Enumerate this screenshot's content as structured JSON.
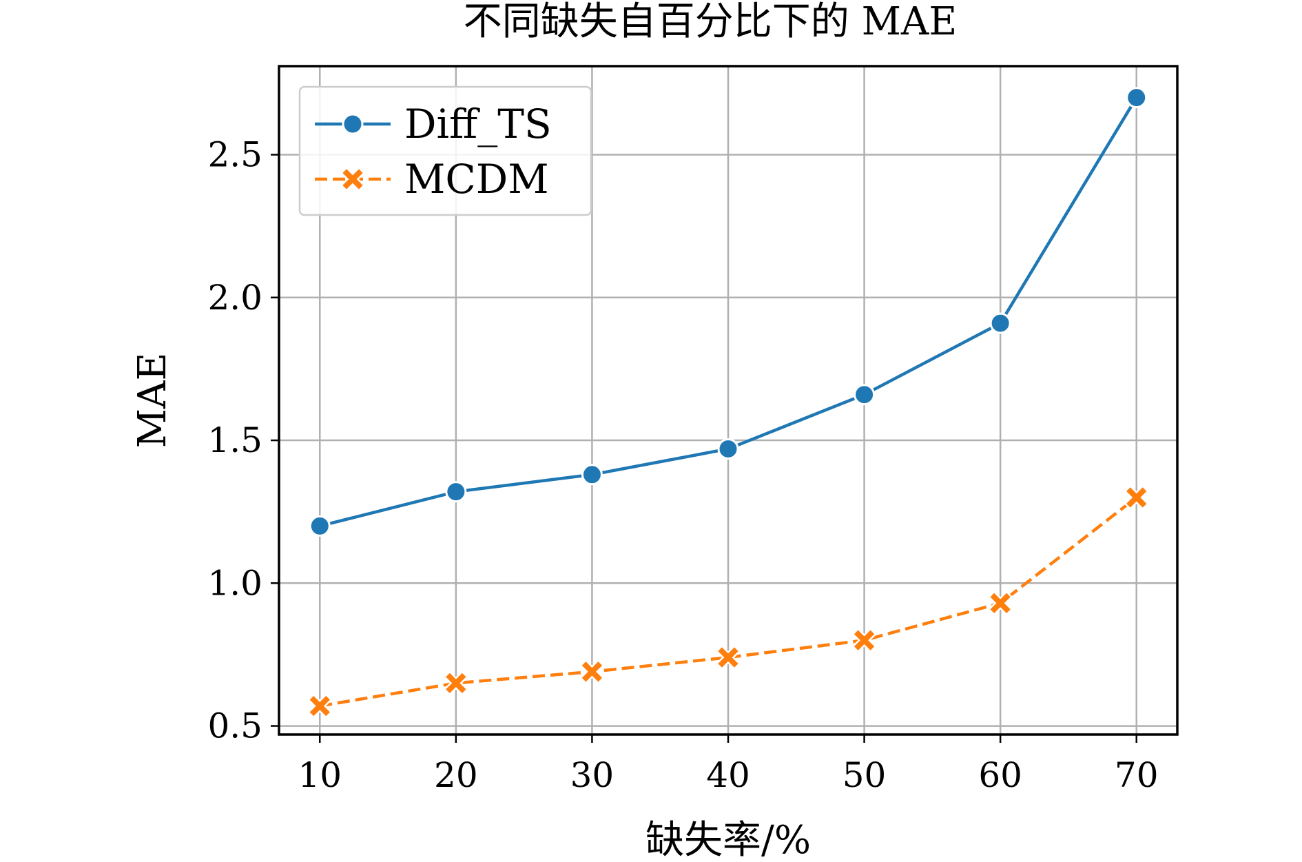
{
  "chart_data": {
    "type": "line",
    "title": "不同缺失自百分比下的 MAE",
    "xlabel": "缺失率/%",
    "ylabel": "MAE",
    "x": [
      10,
      20,
      30,
      40,
      50,
      60,
      70
    ],
    "xticks": [
      "10",
      "20",
      "30",
      "40",
      "50",
      "60",
      "70"
    ],
    "yticks": [
      "0.5",
      "1.0",
      "1.5",
      "2.0",
      "2.5"
    ],
    "xlim": [
      7,
      73
    ],
    "ylim": [
      0.47,
      2.81
    ],
    "grid": true,
    "legend_position": "top-left",
    "series": [
      {
        "name": "Diff_TS",
        "values": [
          1.2,
          1.32,
          1.38,
          1.47,
          1.66,
          1.91,
          2.7
        ],
        "color": "#1f77b4",
        "line_style": "solid",
        "marker": "circle"
      },
      {
        "name": "MCDM",
        "values": [
          0.57,
          0.65,
          0.69,
          0.74,
          0.8,
          0.93,
          1.3
        ],
        "color": "#ff7f0e",
        "line_style": "dashed",
        "marker": "x"
      }
    ]
  }
}
